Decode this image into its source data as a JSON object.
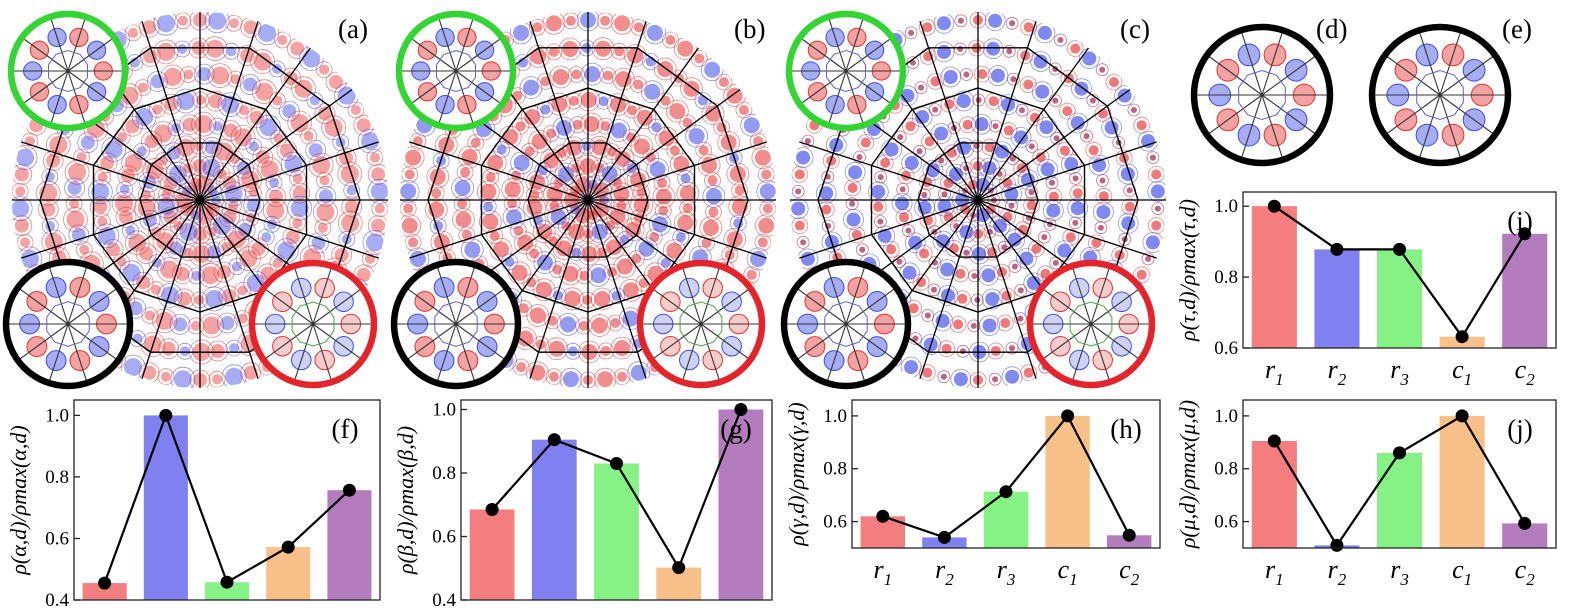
{
  "figure": {
    "panel_labels": [
      "(a)",
      "(b)",
      "(c)",
      "(d)",
      "(e)",
      "(f)",
      "(g)",
      "(h)",
      "(i)",
      "(j)"
    ]
  },
  "colors": {
    "r1": "#f47d7f",
    "r2": "#8080f0",
    "r3": "#86f286",
    "c1": "#f9c08a",
    "c2": "#b37dbd",
    "line": "#000000",
    "ring_green": "#33d433",
    "ring_black": "#000000",
    "ring_red": "#e3242b",
    "lobe_red": "#e83030",
    "lobe_blue": "#3a4ae8",
    "dark_red": "#a0103a"
  },
  "chart_data": [
    {
      "id": "f",
      "type": "bar",
      "panel_label": "(f)",
      "categories": [
        "r1",
        "r2",
        "r3",
        "c1",
        "c2"
      ],
      "category_labels": [
        [
          "r",
          "1"
        ],
        [
          "r",
          "2"
        ],
        [
          "r",
          "3"
        ],
        [
          "c",
          "1"
        ],
        [
          "c",
          "2"
        ]
      ],
      "values": [
        0.455,
        1.0,
        0.458,
        0.572,
        0.757
      ],
      "line_overlay": true,
      "ylabel": "ρ(α,d)/ρmax(α,d)",
      "ylim": [
        0.4,
        1.05
      ],
      "yticks": [
        0.4,
        0.6,
        0.8,
        1.0
      ],
      "ytick_labels": [
        "0.4",
        "0.6",
        "0.8",
        "1.0"
      ]
    },
    {
      "id": "g",
      "type": "bar",
      "panel_label": "(g)",
      "categories": [
        "r1",
        "r2",
        "r3",
        "c1",
        "c2"
      ],
      "category_labels": [
        [
          "r",
          "1"
        ],
        [
          "r",
          "2"
        ],
        [
          "r",
          "3"
        ],
        [
          "c",
          "1"
        ],
        [
          "c",
          "2"
        ]
      ],
      "values": [
        0.685,
        0.905,
        0.83,
        0.502,
        1.0
      ],
      "line_overlay": true,
      "ylabel": "ρ(β,d)/ρmax(β,d)",
      "ylim": [
        0.4,
        1.03
      ],
      "yticks": [
        0.4,
        0.6,
        0.8,
        1.0
      ],
      "ytick_labels": [
        "0.4",
        "0.6",
        "0.8",
        "1.0"
      ]
    },
    {
      "id": "h",
      "type": "bar",
      "panel_label": "(h)",
      "categories": [
        "r1",
        "r2",
        "r3",
        "c1",
        "c2"
      ],
      "category_labels": [
        [
          "r",
          "1"
        ],
        [
          "r",
          "2"
        ],
        [
          "r",
          "3"
        ],
        [
          "c",
          "1"
        ],
        [
          "c",
          "2"
        ]
      ],
      "values": [
        0.62,
        0.54,
        0.713,
        1.0,
        0.548
      ],
      "line_overlay": true,
      "ylabel": "ρ(γ,d)/ρmax(γ,d)",
      "ylim": [
        0.5,
        1.06
      ],
      "yticks": [
        0.6,
        0.8,
        1.0
      ],
      "ytick_labels": [
        "0.6",
        "0.8",
        "1.0"
      ]
    },
    {
      "id": "i",
      "type": "bar",
      "panel_label": "(i)",
      "categories": [
        "r1",
        "r2",
        "r3",
        "c1",
        "c2"
      ],
      "category_labels": [
        [
          "r",
          "1"
        ],
        [
          "r",
          "2"
        ],
        [
          "r",
          "3"
        ],
        [
          "c",
          "1"
        ],
        [
          "c",
          "2"
        ]
      ],
      "values": [
        1.0,
        0.878,
        0.878,
        0.632,
        0.922
      ],
      "line_overlay": true,
      "ylabel": "ρ(τ,d)/ρmax(τ,d)",
      "ylim": [
        0.6,
        1.04
      ],
      "yticks": [
        0.6,
        0.8,
        1.0
      ],
      "ytick_labels": [
        "0.6",
        "0.8",
        "1.0"
      ]
    },
    {
      "id": "j",
      "type": "bar",
      "panel_label": "(j)",
      "categories": [
        "r1",
        "r2",
        "r3",
        "c1",
        "c2"
      ],
      "category_labels": [
        [
          "r",
          "1"
        ],
        [
          "r",
          "2"
        ],
        [
          "r",
          "3"
        ],
        [
          "c",
          "1"
        ],
        [
          "c",
          "2"
        ]
      ],
      "values": [
        0.905,
        0.51,
        0.86,
        1.0,
        0.593
      ],
      "line_overlay": true,
      "ylabel": "ρ(μ,d)/ρmax(μ,d)",
      "ylim": [
        0.5,
        1.06
      ],
      "yticks": [
        0.6,
        0.8,
        1.0
      ],
      "ytick_labels": [
        "0.6",
        "0.8",
        "1.0"
      ]
    }
  ]
}
